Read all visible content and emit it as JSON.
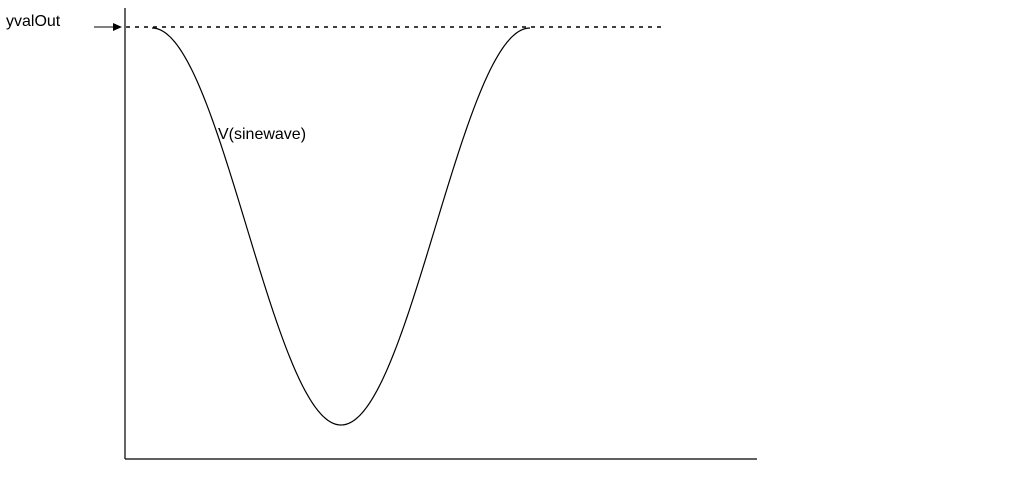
{
  "labels": {
    "marker": "yvalOut",
    "curve": "V(sinewave)"
  },
  "colors": {
    "ink": "#000000",
    "background": "#ffffff"
  }
}
